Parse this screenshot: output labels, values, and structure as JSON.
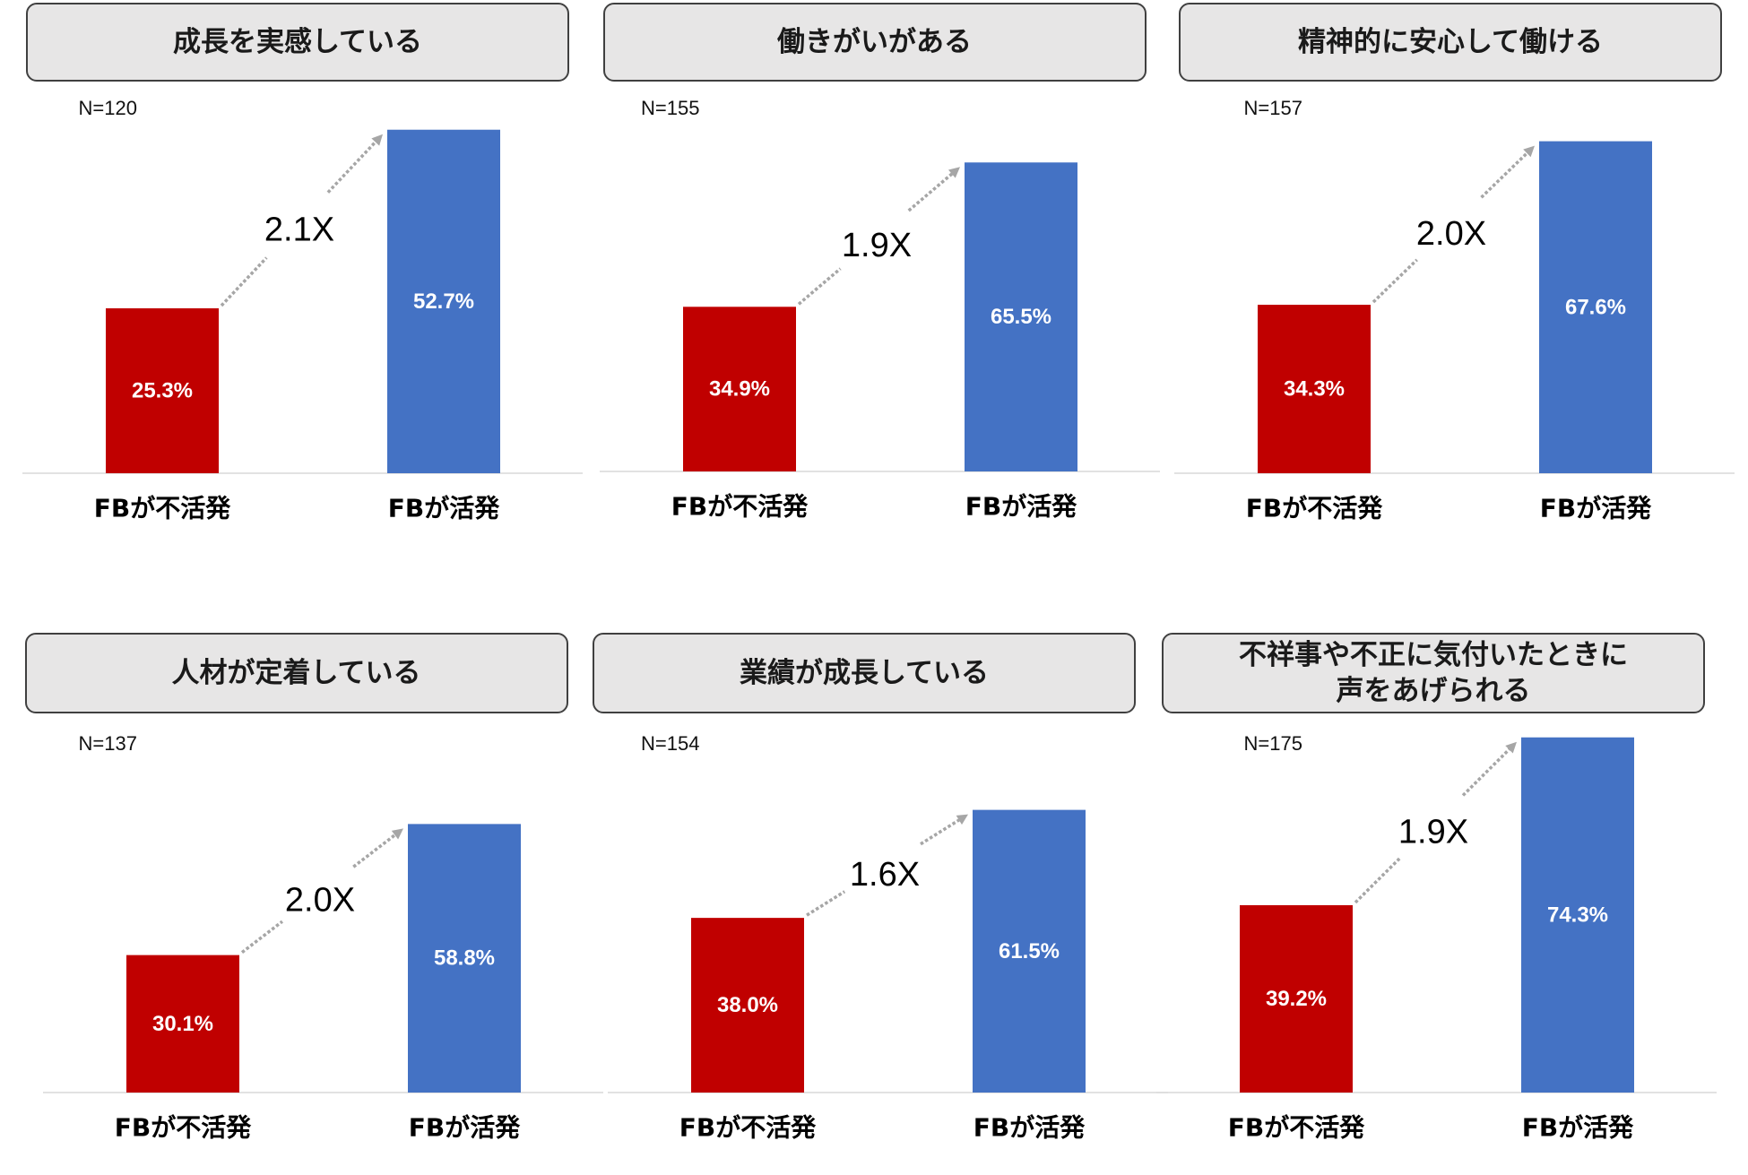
{
  "colors": {
    "fb_inactive": "#c00000",
    "fb_active": "#4472c4",
    "arrow": "#a6a6a6",
    "axis": "#d9d9d9"
  },
  "chart_data": [
    {
      "type": "bar",
      "title": "成長を実感している",
      "n_label": "N=120",
      "categories": [
        "FBが不活発",
        "FBが活発"
      ],
      "values": [
        25.3,
        52.7
      ],
      "value_labels": [
        "25.3%",
        "52.7%"
      ],
      "multiplier": "2.1X",
      "ylim": [
        0,
        55
      ],
      "grid": false
    },
    {
      "type": "bar",
      "title": "働きがいがある",
      "n_label": "N=155",
      "categories": [
        "FBが不活発",
        "FBが活発"
      ],
      "values": [
        34.9,
        65.5
      ],
      "value_labels": [
        "34.9%",
        "65.5%"
      ],
      "multiplier": "1.9X",
      "ylim": [
        0,
        76
      ],
      "grid": false
    },
    {
      "type": "bar",
      "title": "精神的に安心して働ける",
      "n_label": "N=157",
      "categories": [
        "FBが不活発",
        "FBが活発"
      ],
      "values": [
        34.3,
        67.6
      ],
      "value_labels": [
        "34.3%",
        "67.6%"
      ],
      "multiplier": "2.0X",
      "ylim": [
        0,
        73
      ],
      "grid": false
    },
    {
      "type": "bar",
      "title": "人材が定着している",
      "n_label": "N=137",
      "categories": [
        "FBが不活発",
        "FBが活発"
      ],
      "values": [
        30.1,
        58.8
      ],
      "value_labels": [
        "30.1%",
        "58.8%"
      ],
      "multiplier": "2.0X",
      "ylim": [
        0,
        78.5
      ],
      "grid": false
    },
    {
      "type": "bar",
      "title": "業績が成長している",
      "n_label": "N=154",
      "categories": [
        "FBが不活発",
        "FBが活発"
      ],
      "values": [
        38.0,
        61.5
      ],
      "value_labels": [
        "38.0%",
        "61.5%"
      ],
      "multiplier": "1.6X",
      "ylim": [
        0,
        78
      ],
      "grid": false
    },
    {
      "type": "bar",
      "title": "不祥事や不正に気付いたときに\n声をあげられる",
      "n_label": "N=175",
      "categories": [
        "FBが不活発",
        "FBが活発"
      ],
      "values": [
        39.2,
        74.3
      ],
      "value_labels": [
        "39.2%",
        "74.3%"
      ],
      "multiplier": "1.9X",
      "ylim": [
        0,
        75
      ],
      "grid": false
    }
  ]
}
